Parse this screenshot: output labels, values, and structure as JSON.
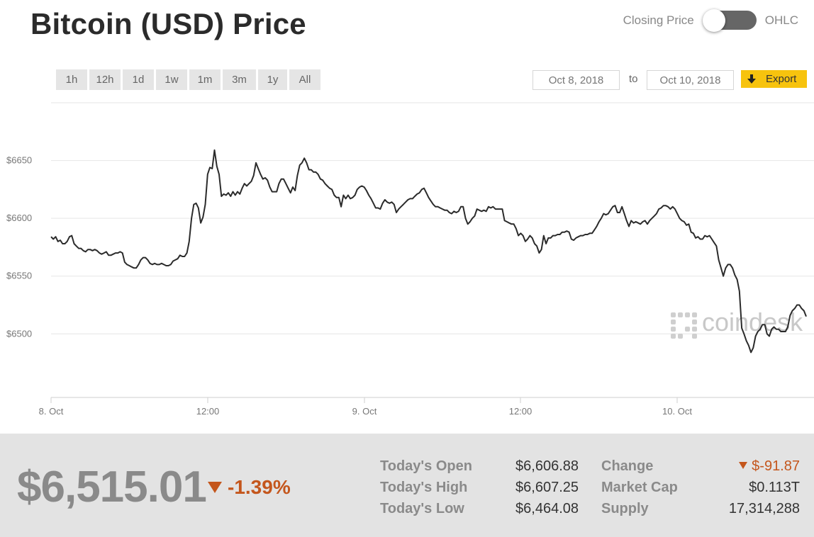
{
  "header": {
    "title": "Bitcoin (USD) Price",
    "toggle_left_label": "Closing Price",
    "toggle_right_label": "OHLC",
    "toggle_state": "Closing Price",
    "toggle_color": "#666666"
  },
  "controls": {
    "ranges": [
      "1h",
      "12h",
      "1d",
      "1w",
      "1m",
      "3m",
      "1y",
      "All"
    ],
    "from_date": "Oct 8, 2018",
    "to_label": "to",
    "to_date": "Oct 10, 2018",
    "export_label": "Export",
    "export_color": "#f7c30e"
  },
  "chart_data": {
    "type": "line",
    "title": "",
    "xlabel": "",
    "ylabel": "",
    "x_ticks": [
      "8. Oct",
      "12:00",
      "9. Oct",
      "12:00",
      "10. Oct"
    ],
    "y_ticks": [
      "$6500",
      "$6550",
      "$6600",
      "$6650"
    ],
    "ylim": [
      6445,
      6700
    ],
    "grid": true,
    "line_color": "#2b2b2b",
    "watermark": "coindesk",
    "series": [
      {
        "values": [
          6584,
          6582,
          6584,
          6580,
          6581,
          6578,
          6578,
          6580,
          6584,
          6585,
          6578,
          6576,
          6574,
          6574,
          6572,
          6571,
          6573,
          6573,
          6572,
          6573,
          6572,
          6570,
          6569,
          6570,
          6571,
          6568,
          6568,
          6569,
          6570,
          6570,
          6571,
          6570,
          6562,
          6560,
          6559,
          6558,
          6557,
          6557,
          6560,
          6564,
          6566,
          6566,
          6564,
          6561,
          6560,
          6561,
          6560,
          6560,
          6561,
          6560,
          6559,
          6559,
          6560,
          6563,
          6564,
          6565,
          6568,
          6567,
          6567,
          6570,
          6580,
          6600,
          6612,
          6613,
          6609,
          6596,
          6601,
          6612,
          6638,
          6644,
          6643,
          6659,
          6645,
          6638,
          6619,
          6621,
          6620,
          6622,
          6619,
          6623,
          6620,
          6623,
          6621,
          6626,
          6630,
          6628,
          6630,
          6632,
          6637,
          6648,
          6643,
          6638,
          6634,
          6635,
          6633,
          6627,
          6623,
          6623,
          6623,
          6630,
          6634,
          6634,
          6630,
          6626,
          6622,
          6627,
          6624,
          6637,
          6646,
          6648,
          6652,
          6648,
          6642,
          6642,
          6640,
          6640,
          6638,
          6634,
          6633,
          6630,
          6628,
          6626,
          6625,
          6620,
          6618,
          6618,
          6610,
          6620,
          6617,
          6620,
          6617,
          6618,
          6620,
          6625,
          6627,
          6628,
          6627,
          6624,
          6620,
          6617,
          6613,
          6609,
          6609,
          6608,
          6613,
          6616,
          6614,
          6613,
          6614,
          6612,
          6605,
          6608,
          6610,
          6612,
          6614,
          6616,
          6617,
          6617,
          6619,
          6621,
          6622,
          6625,
          6626,
          6622,
          6618,
          6615,
          6612,
          6610,
          6610,
          6609,
          6608,
          6607,
          6607,
          6605,
          6604,
          6606,
          6605,
          6606,
          6610,
          6610,
          6600,
          6595,
          6597,
          6600,
          6602,
          6608,
          6607,
          6606,
          6607,
          6606,
          6610,
          6609,
          6610,
          6608,
          6608,
          6608,
          6608,
          6598,
          6597,
          6596,
          6595,
          6595,
          6591,
          6585,
          6587,
          6585,
          6580,
          6582,
          6585,
          6583,
          6578,
          6576,
          6570,
          6573,
          6585,
          6578,
          6583,
          6583,
          6585,
          6585,
          6586,
          6586,
          6588,
          6588,
          6589,
          6588,
          6582,
          6581,
          6583,
          6584,
          6585,
          6585,
          6586,
          6586,
          6587,
          6587,
          6590,
          6593,
          6597,
          6600,
          6604,
          6603,
          6604,
          6607,
          6610,
          6611,
          6605,
          6605,
          6610,
          6604,
          6598,
          6593,
          6598,
          6596,
          6597,
          6596,
          6595,
          6597,
          6598,
          6595,
          6598,
          6600,
          6602,
          6604,
          6608,
          6609,
          6611,
          6611,
          6610,
          6608,
          6610,
          6608,
          6604,
          6600,
          6598,
          6597,
          6594,
          6595,
          6588,
          6587,
          6583,
          6584,
          6582,
          6582,
          6585,
          6584,
          6585,
          6582,
          6579,
          6576,
          6564,
          6557,
          6550,
          6557,
          6560,
          6560,
          6557,
          6551,
          6547,
          6537,
          6505,
          6500,
          6494,
          6490,
          6484,
          6488,
          6498,
          6502,
          6504,
          6508,
          6508,
          6500,
          6498,
          6504,
          6506,
          6504,
          6504,
          6502,
          6502,
          6502,
          6506,
          6516,
          6520,
          6522,
          6525,
          6525,
          6522,
          6520,
          6515
        ]
      }
    ]
  },
  "stats": {
    "price": "$6,515.01",
    "change_pct": "-1.39%",
    "down_color": "#c4561c",
    "open_label": "Today's Open",
    "open_value": "$6,606.88",
    "high_label": "Today's High",
    "high_value": "$6,607.25",
    "low_label": "Today's Low",
    "low_value": "$6,464.08",
    "change_label": "Change",
    "change_value": "$-91.87",
    "mcap_label": "Market Cap",
    "mcap_value": "$0.113T",
    "supply_label": "Supply",
    "supply_value": "17,314,288"
  }
}
